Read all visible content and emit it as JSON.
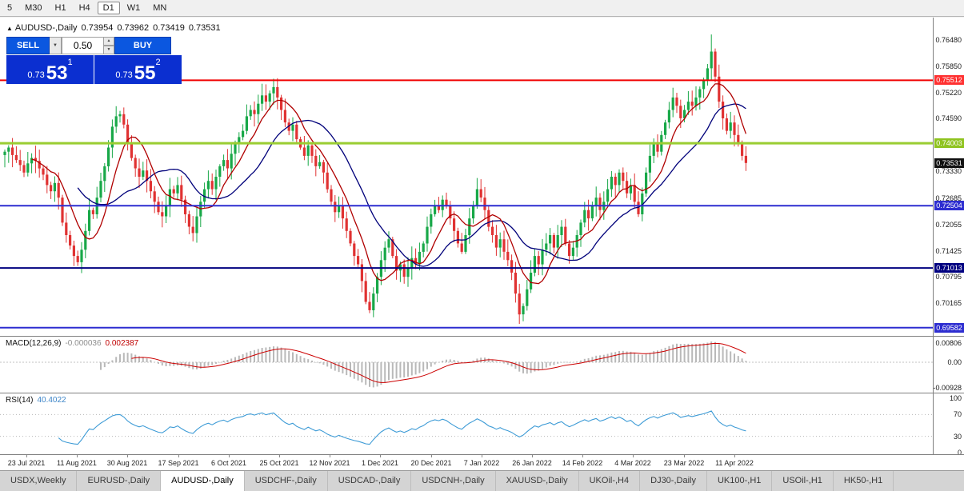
{
  "toolbar": {
    "timeframes": [
      "5",
      "M30",
      "H1",
      "H4",
      "D1",
      "W1",
      "MN"
    ],
    "active": "D1"
  },
  "ohlc": {
    "arrow": "▲",
    "symbol": "AUDUSD-,Daily",
    "open": "0.73954",
    "high": "0.73962",
    "low": "0.73419",
    "close": "0.73531"
  },
  "trade_panel": {
    "sell_label": "SELL",
    "buy_label": "BUY",
    "volume": "0.50",
    "sell_price_small": "0.73",
    "sell_price_big": "53",
    "sell_sup": "1",
    "buy_price_small": "0.73",
    "buy_price_big": "55",
    "buy_sup": "2"
  },
  "price_axis": {
    "plain": [
      "0.76480",
      "0.75850",
      "0.75220",
      "0.74590",
      "0.73330",
      "0.72685",
      "0.72055",
      "0.71425",
      "0.70795",
      "0.70165"
    ],
    "tags": [
      {
        "text": "0.75512",
        "bg": "#ff3030"
      },
      {
        "text": "0.74003",
        "bg": "#8fc31f"
      },
      {
        "text": "0.73531",
        "bg": "#101010"
      },
      {
        "text": "0.72504",
        "bg": "#2d2dd0"
      },
      {
        "text": "0.71013",
        "bg": "#000080"
      },
      {
        "text": "0.69582",
        "bg": "#2d2dd0"
      }
    ]
  },
  "hlines": [
    {
      "price": 0.75512,
      "color": "#f00000",
      "width": 2
    },
    {
      "price": 0.74003,
      "color": "#9acd32",
      "width": 3
    },
    {
      "price": 0.72504,
      "color": "#2d2dd0",
      "width": 2
    },
    {
      "price": 0.71013,
      "color": "#000080",
      "width": 2
    },
    {
      "price": 0.69582,
      "color": "#2d2dd0",
      "width": 2
    }
  ],
  "macd": {
    "name": "MACD(12,26,9)",
    "main_value": "-0.000036",
    "signal_value": "0.002387",
    "axis": [
      "0.00806",
      "0.00",
      "-0.00928"
    ]
  },
  "rsi": {
    "name": "RSI(14)",
    "value": "40.4022",
    "axis": [
      "100",
      "70",
      "30",
      "0"
    ]
  },
  "tabs": {
    "items": [
      "USDX,Weekly",
      "EURUSD-,Daily",
      "AUDUSD-,Daily",
      "USDCHF-,Daily",
      "USDCAD-,Daily",
      "USDCNH-,Daily",
      "XAUUSD-,Daily",
      "UKOil-,H4",
      "DJ30-,Daily",
      "UK100-,H1",
      "USOil-,H1",
      "HK50-,H1"
    ],
    "active": "AUDUSD-,Daily"
  },
  "chart_data": {
    "type": "candlestick",
    "symbol": "AUDUSD-,Daily",
    "title": "AUDUSD Daily with MACD(12,26,9) and RSI(14)",
    "y_range": [
      0.695,
      0.769
    ],
    "displayed_ohlc": {
      "open": 0.73954,
      "high": 0.73962,
      "low": 0.73419,
      "close": 0.73531
    },
    "x_labels": [
      "23 Jul 2021",
      "11 Aug 2021",
      "30 Aug 2021",
      "17 Sep 2021",
      "6 Oct 2021",
      "25 Oct 2021",
      "12 Nov 2021",
      "1 Dec 2021",
      "20 Dec 2021",
      "7 Jan 2022",
      "26 Jan 2022",
      "14 Feb 2022",
      "4 Mar 2022",
      "23 Mar 2022",
      "11 Apr 2022"
    ],
    "ma_fast_period": 8,
    "ma_slow_period": 20,
    "ma_fast_color": "#b00000",
    "ma_slow_color": "#00007a",
    "bull_color": "#18a848",
    "bear_color": "#e03232",
    "closes": [
      0.738,
      0.739,
      0.7372,
      0.736,
      0.7348,
      0.733,
      0.7352,
      0.7365,
      0.7358,
      0.734,
      0.7325,
      0.73,
      0.7285,
      0.7305,
      0.727,
      0.721,
      0.718,
      0.7155,
      0.713,
      0.7115,
      0.7145,
      0.719,
      0.724,
      0.723,
      0.727,
      0.731,
      0.7345,
      0.739,
      0.744,
      0.7465,
      0.747,
      0.7445,
      0.74,
      0.7365,
      0.734,
      0.732,
      0.7335,
      0.731,
      0.7285,
      0.726,
      0.7235,
      0.7225,
      0.725,
      0.729,
      0.728,
      0.73,
      0.7265,
      0.723,
      0.72,
      0.7185,
      0.7225,
      0.726,
      0.729,
      0.731,
      0.729,
      0.732,
      0.7345,
      0.736,
      0.734,
      0.7375,
      0.74,
      0.7415,
      0.743,
      0.7465,
      0.748,
      0.747,
      0.7495,
      0.7515,
      0.75,
      0.752,
      0.7535,
      0.751,
      0.748,
      0.745,
      0.743,
      0.7445,
      0.741,
      0.739,
      0.737,
      0.7395,
      0.737,
      0.7345,
      0.7355,
      0.733,
      0.729,
      0.726,
      0.7235,
      0.725,
      0.722,
      0.719,
      0.716,
      0.713,
      0.711,
      0.707,
      0.702,
      0.7,
      0.704,
      0.708,
      0.712,
      0.715,
      0.717,
      0.713,
      0.7095,
      0.711,
      0.708,
      0.71,
      0.7125,
      0.711,
      0.714,
      0.716,
      0.72,
      0.723,
      0.725,
      0.724,
      0.7265,
      0.725,
      0.722,
      0.719,
      0.716,
      0.714,
      0.718,
      0.722,
      0.725,
      0.729,
      0.727,
      0.724,
      0.72,
      0.718,
      0.715,
      0.717,
      0.714,
      0.712,
      0.709,
      0.704,
      0.699,
      0.701,
      0.705,
      0.709,
      0.713,
      0.711,
      0.7145,
      0.716,
      0.718,
      0.715,
      0.718,
      0.72,
      0.716,
      0.713,
      0.715,
      0.718,
      0.721,
      0.724,
      0.722,
      0.725,
      0.727,
      0.724,
      0.726,
      0.729,
      0.732,
      0.73,
      0.733,
      0.731,
      0.728,
      0.73,
      0.726,
      0.723,
      0.728,
      0.733,
      0.737,
      0.74,
      0.738,
      0.742,
      0.745,
      0.748,
      0.751,
      0.749,
      0.746,
      0.748,
      0.75,
      0.749,
      0.751,
      0.753,
      0.755,
      0.758,
      0.762,
      0.756,
      0.75,
      0.746,
      0.743,
      0.745,
      0.742,
      0.74,
      0.737,
      0.7353
    ],
    "wick_overrides": {
      "high": {
        "30": 0.7478,
        "70": 0.7555,
        "184": 0.7661
      },
      "low": {
        "19": 0.7106,
        "95": 0.6993,
        "134": 0.6967
      }
    }
  }
}
